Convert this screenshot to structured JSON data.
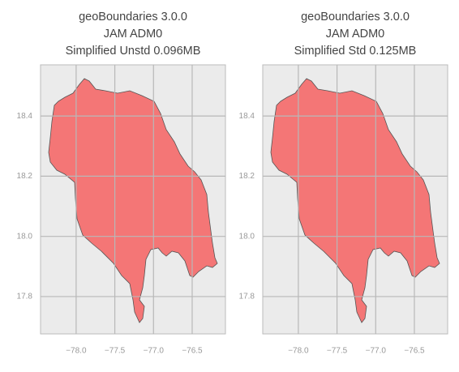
{
  "chart_data": [
    {
      "type": "map",
      "title": [
        "geoBoundaries 3.0.0",
        "JAM ADM0",
        "Simplified Unstd 0.096MB"
      ],
      "xlim": [
        -78.46,
        -76.07
      ],
      "ylim": [
        17.676,
        18.57
      ],
      "xticks": [
        {
          "value": -78.0,
          "label": "−78.0"
        },
        {
          "value": -77.5,
          "label": "−77.5"
        },
        {
          "value": -77.0,
          "label": "−77.0"
        },
        {
          "value": -76.5,
          "label": "−76.5"
        }
      ],
      "yticks": [
        {
          "value": 17.8,
          "label": "17.8"
        },
        {
          "value": 18.0,
          "label": "18.0"
        },
        18.2,
        18.4
      ],
      "grid": true,
      "color": "#f47676"
    },
    {
      "type": "map",
      "title": [
        "geoBoundaries 3.0.0",
        "JAM ADM0",
        "Simplified Std 0.125MB"
      ],
      "xlim": [
        -78.46,
        -76.07
      ],
      "ylim": [
        17.676,
        18.57
      ],
      "xticks": [
        {
          "value": -78.0,
          "label": "−78.0"
        },
        {
          "value": -77.5,
          "label": "−77.5"
        },
        {
          "value": -77.0,
          "label": "−77.0"
        },
        {
          "value": -76.5,
          "label": "−76.5"
        }
      ],
      "yticks": [
        {
          "value": 17.8,
          "label": "17.8"
        },
        {
          "value": 18.0,
          "label": "18.0"
        },
        18.2,
        18.4
      ],
      "grid": true,
      "color": "#f47676"
    }
  ]
}
